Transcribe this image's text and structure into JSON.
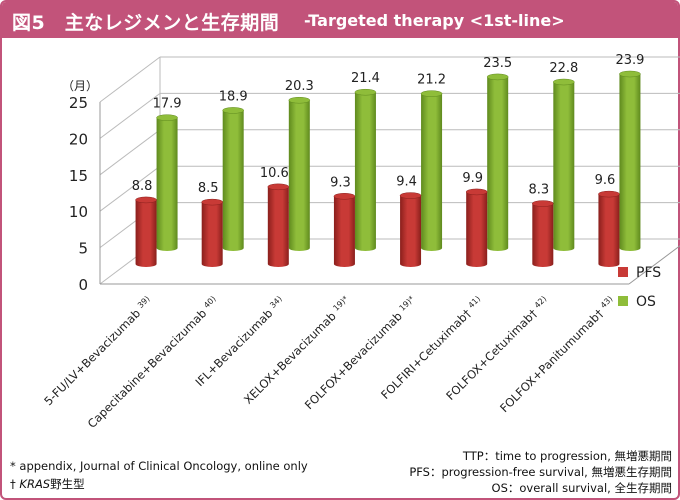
{
  "title": {
    "main": "図5　主なレジメンと生存期間",
    "sub": "-Targeted therapy <1st-line>"
  },
  "chart_data": {
    "type": "bar",
    "y_unit_label": "（月）",
    "ylim": [
      0,
      25
    ],
    "yticks": [
      0,
      5,
      10,
      15,
      20,
      25
    ],
    "categories": [
      {
        "name": "5-FU/LV+Bevacizumab",
        "ref": "39)"
      },
      {
        "name": "Capecitabine+Bevacizumab",
        "ref": "40)"
      },
      {
        "name": "IFL+Bevacizumab",
        "ref": "34)"
      },
      {
        "name": "XELOX+Bevacizumab",
        "ref": "19)*"
      },
      {
        "name": "FOLFOX+Bevacizumab",
        "ref": "19)*"
      },
      {
        "name": "FOLFIRI+Cetuximab†",
        "ref": "41)"
      },
      {
        "name": "FOLFOX+Cetuximab†",
        "ref": "42)"
      },
      {
        "name": "FOLFOX+Panitumumab†",
        "ref": "43)"
      }
    ],
    "series": [
      {
        "name": "PFS",
        "color": "#c83a36",
        "values": [
          8.8,
          8.5,
          10.6,
          9.3,
          9.4,
          9.9,
          8.3,
          9.6
        ],
        "labels": [
          "8.8",
          "8.5",
          "10.6",
          "9.3",
          "9.4",
          "9.9",
          "8.3",
          "9.6"
        ]
      },
      {
        "name": "OS",
        "color": "#8fbd3a",
        "values": [
          17.9,
          18.9,
          20.3,
          21.4,
          21.2,
          23.5,
          22.8,
          23.9
        ],
        "labels": [
          "17.9",
          "18.9",
          "20.3",
          "21.4",
          "21.2",
          "23.5",
          "22.8",
          "23.9"
        ]
      }
    ],
    "legend_position": "right",
    "grid": true
  },
  "footnotes": {
    "left": [
      "* appendix, Journal of Clinical Oncology, online only",
      "† KRAS野生型"
    ],
    "right": [
      "TTP：time to progression, 無増悪期間",
      "PFS：progression-free survival, 無増悪生存期間",
      "OS：overall survival, 全生存期間"
    ]
  }
}
